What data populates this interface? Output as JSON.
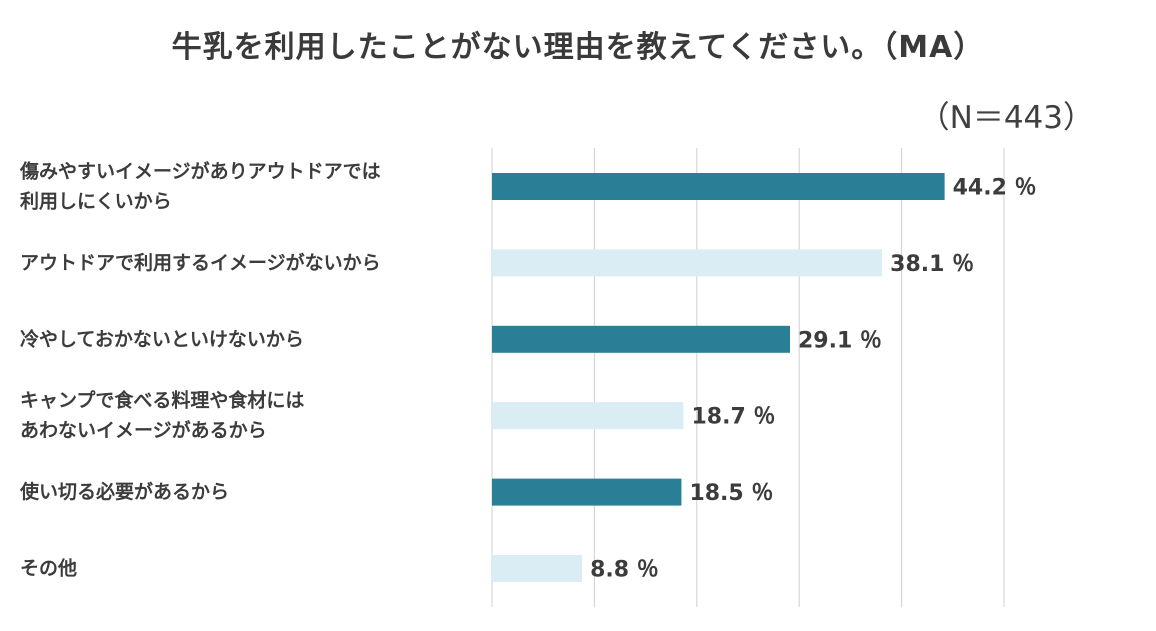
{
  "title": "牛乳を利用したことがない理由を教えてください。（MA）",
  "sample_size": "（N＝443）",
  "colors": {
    "dark": "#2a7f96",
    "light": "#daedf5",
    "grid": "#d0d0d0"
  },
  "chart_data": {
    "type": "bar",
    "orientation": "horizontal",
    "categories": [
      [
        "傷みやすいイメージがありアウトドアでは",
        "利用しにくいから"
      ],
      [
        "アウトドアで利用するイメージがないから"
      ],
      [
        "冷やしておかないといけないから"
      ],
      [
        "キャンプで食べる料理や食材には",
        "あわないイメージがあるから"
      ],
      [
        "使い切る必要があるから"
      ],
      [
        "その他"
      ]
    ],
    "values": [
      44.2,
      38.1,
      29.1,
      18.7,
      18.5,
      8.8
    ],
    "value_labels": [
      "44.2 ％",
      "38.1 ％",
      "29.1 ％",
      "18.7 ％",
      "18.5 ％",
      "8.8 ％"
    ],
    "bar_styles": [
      "dark",
      "light",
      "dark",
      "light",
      "dark",
      "light"
    ],
    "xlim": [
      0,
      50
    ],
    "grid": true,
    "legend": "none"
  }
}
